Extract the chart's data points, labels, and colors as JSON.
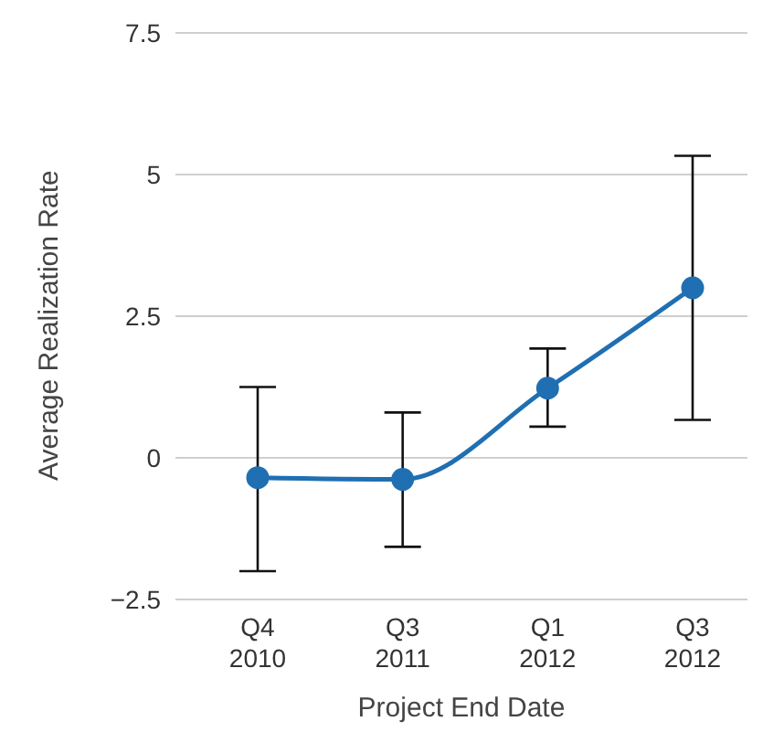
{
  "chart_data": {
    "type": "line",
    "xlabel": "Project End Date",
    "ylabel": "Average Realization Rate",
    "categories": [
      "Q4 2010",
      "Q3 2011",
      "Q1 2012",
      "Q3 2012"
    ],
    "series": [
      {
        "color": "#1f6fb2",
        "values": [
          -0.35,
          -0.38,
          1.23,
          3.0
        ],
        "errors": [
          [
            -2.0,
            1.25
          ],
          [
            -1.57,
            0.8
          ],
          [
            0.55,
            1.93
          ],
          [
            0.67,
            5.33
          ]
        ]
      }
    ],
    "ylim": [
      -2.5,
      7.5
    ],
    "yticks": [
      -2.5,
      0,
      2.5,
      5,
      7.5
    ],
    "grid": "y",
    "marker": "circle",
    "line_style": "solid",
    "legend": false
  }
}
